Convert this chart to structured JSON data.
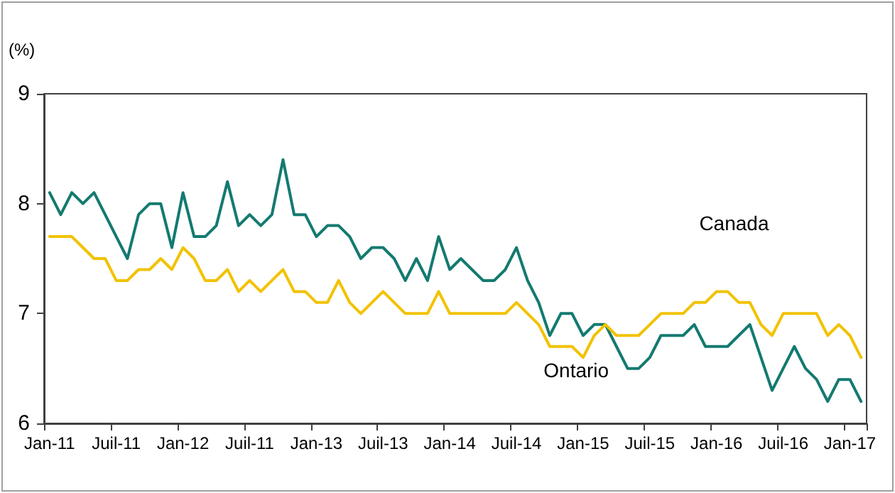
{
  "chart_data": {
    "type": "line",
    "ylabel": "(%)",
    "categories": [
      "Jan-11",
      null,
      null,
      null,
      null,
      null,
      "Juil-11",
      null,
      null,
      null,
      null,
      null,
      "Jan-12",
      null,
      null,
      null,
      null,
      null,
      "Juil-11",
      null,
      null,
      null,
      null,
      null,
      "Jan-13",
      null,
      null,
      null,
      null,
      null,
      "Juil-13",
      null,
      null,
      null,
      null,
      null,
      "Jan-14",
      null,
      null,
      null,
      null,
      null,
      "Juil-14",
      null,
      null,
      null,
      null,
      null,
      "Jan-15",
      null,
      null,
      null,
      null,
      null,
      "Juil-15",
      null,
      null,
      null,
      null,
      null,
      "Jan-16",
      null,
      null,
      null,
      null,
      null,
      "Juil-16",
      null,
      null,
      null,
      null,
      null,
      "Jan-17",
      null
    ],
    "series": [
      {
        "name": "Ontario",
        "color": "#137a70",
        "values": [
          8.1,
          7.9,
          8.1,
          8.0,
          8.1,
          7.9,
          7.7,
          7.5,
          7.9,
          8.0,
          8.0,
          7.6,
          8.1,
          7.7,
          7.7,
          7.8,
          8.2,
          7.8,
          7.9,
          7.8,
          7.9,
          8.4,
          7.9,
          7.9,
          7.7,
          7.8,
          7.8,
          7.7,
          7.5,
          7.6,
          7.6,
          7.5,
          7.3,
          7.5,
          7.3,
          7.7,
          7.4,
          7.5,
          7.4,
          7.3,
          7.3,
          7.4,
          7.6,
          7.3,
          7.1,
          6.8,
          7.0,
          7.0,
          6.8,
          6.9,
          6.9,
          6.7,
          6.5,
          6.5,
          6.6,
          6.8,
          6.8,
          6.8,
          6.9,
          6.7,
          6.7,
          6.7,
          6.8,
          6.9,
          6.6,
          6.3,
          6.5,
          6.7,
          6.5,
          6.4,
          6.2,
          6.4,
          6.4,
          6.2
        ]
      },
      {
        "name": "Canada",
        "color": "#f2c200",
        "values": [
          7.7,
          7.7,
          7.7,
          7.6,
          7.5,
          7.5,
          7.3,
          7.3,
          7.4,
          7.4,
          7.5,
          7.4,
          7.6,
          7.5,
          7.3,
          7.3,
          7.4,
          7.2,
          7.3,
          7.2,
          7.3,
          7.4,
          7.2,
          7.2,
          7.1,
          7.1,
          7.3,
          7.1,
          7.0,
          7.1,
          7.2,
          7.1,
          7.0,
          7.0,
          7.0,
          7.2,
          7.0,
          7.0,
          7.0,
          7.0,
          7.0,
          7.0,
          7.1,
          7.0,
          6.9,
          6.7,
          6.7,
          6.7,
          6.6,
          6.8,
          6.9,
          6.8,
          6.8,
          6.8,
          6.9,
          7.0,
          7.0,
          7.0,
          7.1,
          7.1,
          7.2,
          7.2,
          7.1,
          7.1,
          6.9,
          6.8,
          7.0,
          7.0,
          7.0,
          7.0,
          6.8,
          6.9,
          6.8,
          6.6
        ]
      }
    ],
    "ylim": [
      6,
      9
    ],
    "yticks": [
      6,
      7,
      8,
      9
    ],
    "grid": false,
    "legend": false,
    "marker": "none",
    "line_style": "solid"
  }
}
